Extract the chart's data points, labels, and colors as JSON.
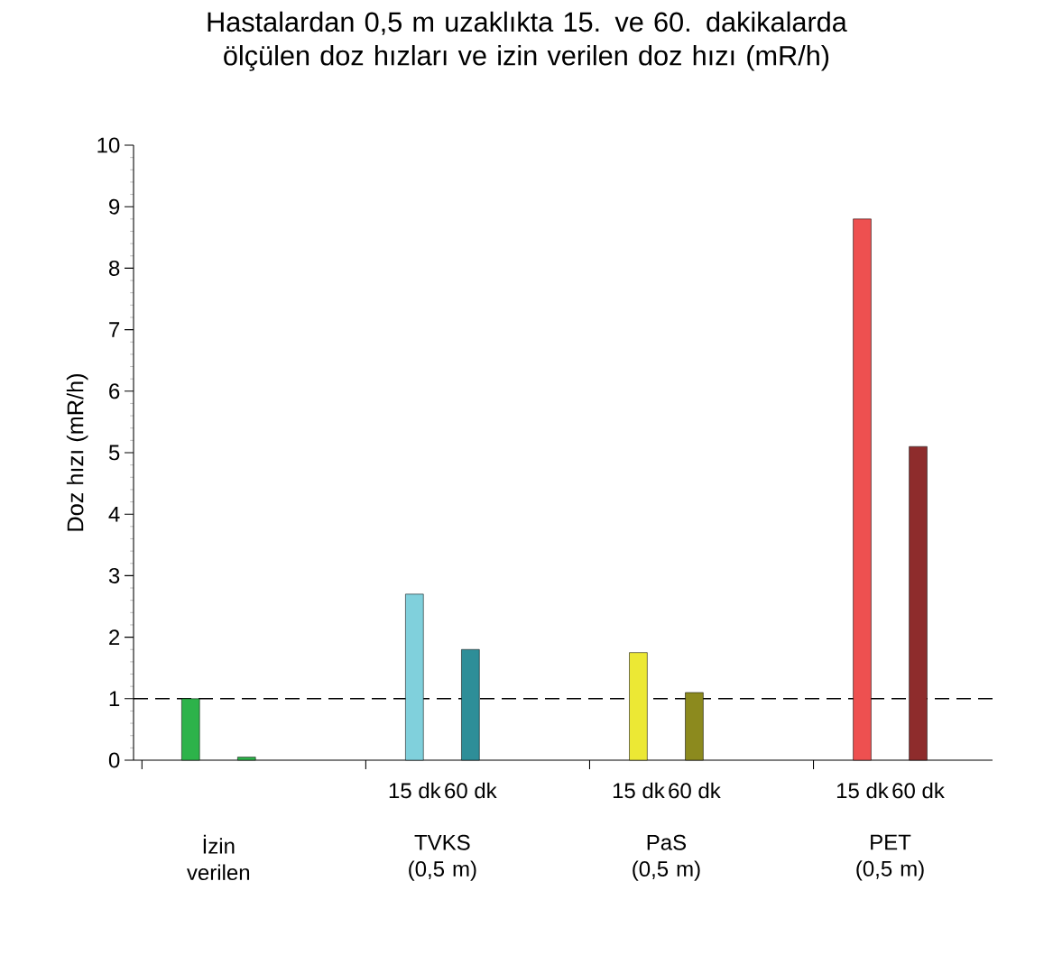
{
  "chart_data": {
    "type": "bar",
    "title": "Hastalardan 0,5 m uzaklıkta 15. ve 60. dakikalarda ölçülen doz hızları ve izin verilen doz hızı (mR/h)",
    "ylabel": "Doz hızı (mR/h)",
    "categories": [
      null,
      null,
      "15 dk",
      "60 dk",
      "15 dk",
      "60 dk",
      "15 dk",
      "60 dk"
    ],
    "values": [
      1.0,
      0.05,
      2.7,
      1.8,
      1.75,
      1.1,
      8.8,
      5.1
    ],
    "colors": [
      "#2db34a",
      "#2db34a",
      "#80d0dc",
      "#2e8e98",
      "#ece834",
      "#8c8a1e",
      "#ee5050",
      "#8e2c2c"
    ],
    "annotations": [
      "İzin verilen",
      "TVKS (0,5 m)",
      "PaS (0,5 m)",
      "PET (0,5 m)"
    ],
    "ylim": [
      0,
      10
    ],
    "yticks": [
      0,
      1,
      2,
      3,
      4,
      5,
      6,
      7,
      8,
      9,
      10
    ],
    "ref_lines": [
      {
        "axis": "y",
        "value": 1,
        "color": "#000000",
        "line_style": "dashed"
      }
    ],
    "grid": false
  }
}
